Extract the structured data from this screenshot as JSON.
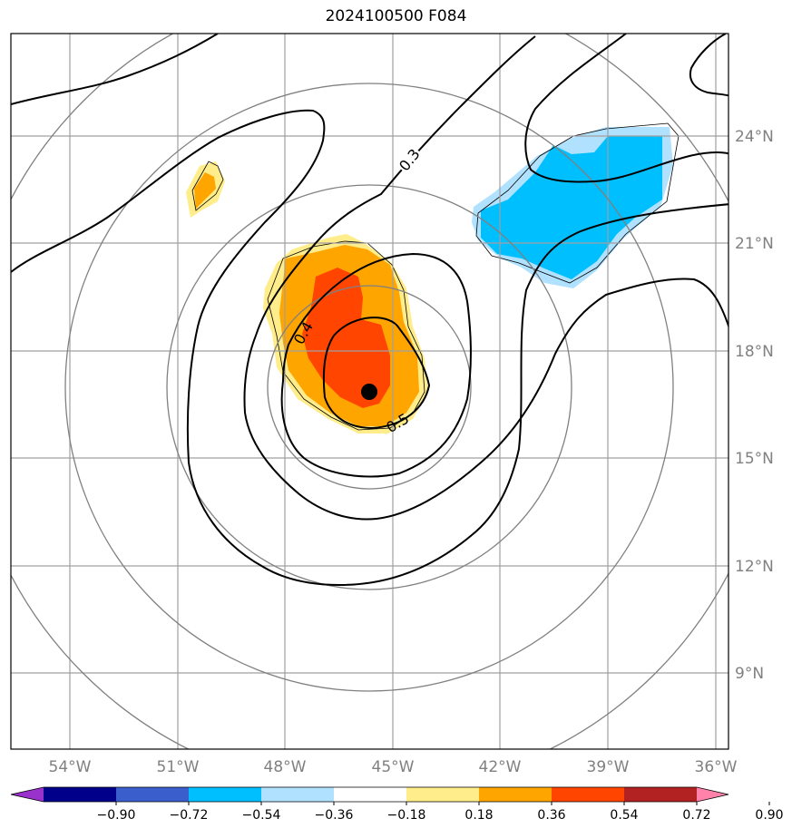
{
  "title": "2024100500 F084",
  "map": {
    "lon_labels": [
      "54°W",
      "51°W",
      "48°W",
      "45°W",
      "42°W",
      "39°W",
      "36°W"
    ],
    "lat_labels": [
      "24°N",
      "21°N",
      "18°N",
      "15°N",
      "12°N",
      "9°N"
    ],
    "lon_range": [
      -55.6,
      -35.6
    ],
    "lat_range": [
      7.0,
      26.9
    ],
    "center": {
      "lon": -45.7,
      "lat": 16.8
    },
    "grid_color": "#a0a0a0",
    "contour_labels": [
      "0.3",
      "0.4",
      "0.5"
    ]
  },
  "colorbar": {
    "ticks": [
      "−0.90",
      "−0.72",
      "−0.54",
      "−0.36",
      "−0.18",
      "0.18",
      "0.36",
      "0.54",
      "0.72",
      "0.90"
    ],
    "colors": [
      "#9932cc",
      "#00008b",
      "#3a5fcd",
      "#00bfff",
      "#b0e2ff",
      "#ffffff",
      "#ffec8b",
      "#ffa500",
      "#ff4500",
      "#b22222",
      "#ff82ab"
    ],
    "extend": "both"
  }
}
